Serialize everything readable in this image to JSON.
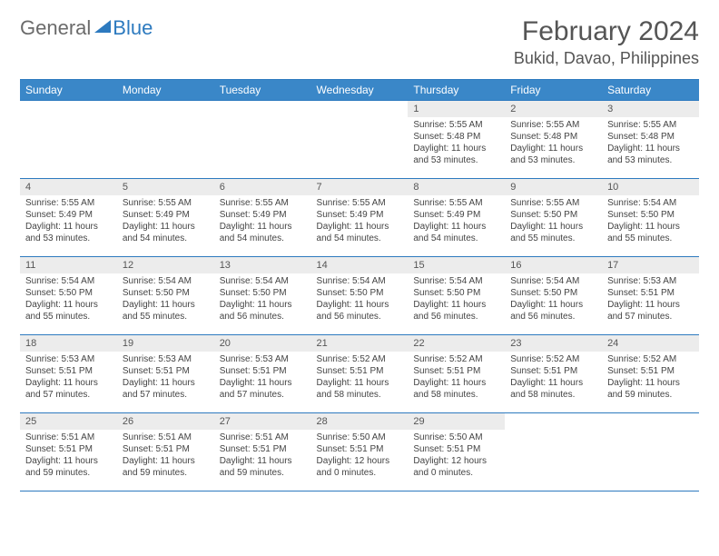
{
  "logo": {
    "text1": "General",
    "text2": "Blue"
  },
  "title": "February 2024",
  "location": "Bukid, Davao, Philippines",
  "colors": {
    "header_bg": "#3a87c8",
    "border": "#2d7abf",
    "daynum_bg": "#ececec",
    "text": "#555"
  },
  "day_labels": [
    "Sunday",
    "Monday",
    "Tuesday",
    "Wednesday",
    "Thursday",
    "Friday",
    "Saturday"
  ],
  "weeks": [
    [
      {
        "n": "",
        "sr": "",
        "ss": "",
        "dl": ""
      },
      {
        "n": "",
        "sr": "",
        "ss": "",
        "dl": ""
      },
      {
        "n": "",
        "sr": "",
        "ss": "",
        "dl": ""
      },
      {
        "n": "",
        "sr": "",
        "ss": "",
        "dl": ""
      },
      {
        "n": "1",
        "sr": "Sunrise: 5:55 AM",
        "ss": "Sunset: 5:48 PM",
        "dl": "Daylight: 11 hours and 53 minutes."
      },
      {
        "n": "2",
        "sr": "Sunrise: 5:55 AM",
        "ss": "Sunset: 5:48 PM",
        "dl": "Daylight: 11 hours and 53 minutes."
      },
      {
        "n": "3",
        "sr": "Sunrise: 5:55 AM",
        "ss": "Sunset: 5:48 PM",
        "dl": "Daylight: 11 hours and 53 minutes."
      }
    ],
    [
      {
        "n": "4",
        "sr": "Sunrise: 5:55 AM",
        "ss": "Sunset: 5:49 PM",
        "dl": "Daylight: 11 hours and 53 minutes."
      },
      {
        "n": "5",
        "sr": "Sunrise: 5:55 AM",
        "ss": "Sunset: 5:49 PM",
        "dl": "Daylight: 11 hours and 54 minutes."
      },
      {
        "n": "6",
        "sr": "Sunrise: 5:55 AM",
        "ss": "Sunset: 5:49 PM",
        "dl": "Daylight: 11 hours and 54 minutes."
      },
      {
        "n": "7",
        "sr": "Sunrise: 5:55 AM",
        "ss": "Sunset: 5:49 PM",
        "dl": "Daylight: 11 hours and 54 minutes."
      },
      {
        "n": "8",
        "sr": "Sunrise: 5:55 AM",
        "ss": "Sunset: 5:49 PM",
        "dl": "Daylight: 11 hours and 54 minutes."
      },
      {
        "n": "9",
        "sr": "Sunrise: 5:55 AM",
        "ss": "Sunset: 5:50 PM",
        "dl": "Daylight: 11 hours and 55 minutes."
      },
      {
        "n": "10",
        "sr": "Sunrise: 5:54 AM",
        "ss": "Sunset: 5:50 PM",
        "dl": "Daylight: 11 hours and 55 minutes."
      }
    ],
    [
      {
        "n": "11",
        "sr": "Sunrise: 5:54 AM",
        "ss": "Sunset: 5:50 PM",
        "dl": "Daylight: 11 hours and 55 minutes."
      },
      {
        "n": "12",
        "sr": "Sunrise: 5:54 AM",
        "ss": "Sunset: 5:50 PM",
        "dl": "Daylight: 11 hours and 55 minutes."
      },
      {
        "n": "13",
        "sr": "Sunrise: 5:54 AM",
        "ss": "Sunset: 5:50 PM",
        "dl": "Daylight: 11 hours and 56 minutes."
      },
      {
        "n": "14",
        "sr": "Sunrise: 5:54 AM",
        "ss": "Sunset: 5:50 PM",
        "dl": "Daylight: 11 hours and 56 minutes."
      },
      {
        "n": "15",
        "sr": "Sunrise: 5:54 AM",
        "ss": "Sunset: 5:50 PM",
        "dl": "Daylight: 11 hours and 56 minutes."
      },
      {
        "n": "16",
        "sr": "Sunrise: 5:54 AM",
        "ss": "Sunset: 5:50 PM",
        "dl": "Daylight: 11 hours and 56 minutes."
      },
      {
        "n": "17",
        "sr": "Sunrise: 5:53 AM",
        "ss": "Sunset: 5:51 PM",
        "dl": "Daylight: 11 hours and 57 minutes."
      }
    ],
    [
      {
        "n": "18",
        "sr": "Sunrise: 5:53 AM",
        "ss": "Sunset: 5:51 PM",
        "dl": "Daylight: 11 hours and 57 minutes."
      },
      {
        "n": "19",
        "sr": "Sunrise: 5:53 AM",
        "ss": "Sunset: 5:51 PM",
        "dl": "Daylight: 11 hours and 57 minutes."
      },
      {
        "n": "20",
        "sr": "Sunrise: 5:53 AM",
        "ss": "Sunset: 5:51 PM",
        "dl": "Daylight: 11 hours and 57 minutes."
      },
      {
        "n": "21",
        "sr": "Sunrise: 5:52 AM",
        "ss": "Sunset: 5:51 PM",
        "dl": "Daylight: 11 hours and 58 minutes."
      },
      {
        "n": "22",
        "sr": "Sunrise: 5:52 AM",
        "ss": "Sunset: 5:51 PM",
        "dl": "Daylight: 11 hours and 58 minutes."
      },
      {
        "n": "23",
        "sr": "Sunrise: 5:52 AM",
        "ss": "Sunset: 5:51 PM",
        "dl": "Daylight: 11 hours and 58 minutes."
      },
      {
        "n": "24",
        "sr": "Sunrise: 5:52 AM",
        "ss": "Sunset: 5:51 PM",
        "dl": "Daylight: 11 hours and 59 minutes."
      }
    ],
    [
      {
        "n": "25",
        "sr": "Sunrise: 5:51 AM",
        "ss": "Sunset: 5:51 PM",
        "dl": "Daylight: 11 hours and 59 minutes."
      },
      {
        "n": "26",
        "sr": "Sunrise: 5:51 AM",
        "ss": "Sunset: 5:51 PM",
        "dl": "Daylight: 11 hours and 59 minutes."
      },
      {
        "n": "27",
        "sr": "Sunrise: 5:51 AM",
        "ss": "Sunset: 5:51 PM",
        "dl": "Daylight: 11 hours and 59 minutes."
      },
      {
        "n": "28",
        "sr": "Sunrise: 5:50 AM",
        "ss": "Sunset: 5:51 PM",
        "dl": "Daylight: 12 hours and 0 minutes."
      },
      {
        "n": "29",
        "sr": "Sunrise: 5:50 AM",
        "ss": "Sunset: 5:51 PM",
        "dl": "Daylight: 12 hours and 0 minutes."
      },
      {
        "n": "",
        "sr": "",
        "ss": "",
        "dl": ""
      },
      {
        "n": "",
        "sr": "",
        "ss": "",
        "dl": ""
      }
    ]
  ]
}
